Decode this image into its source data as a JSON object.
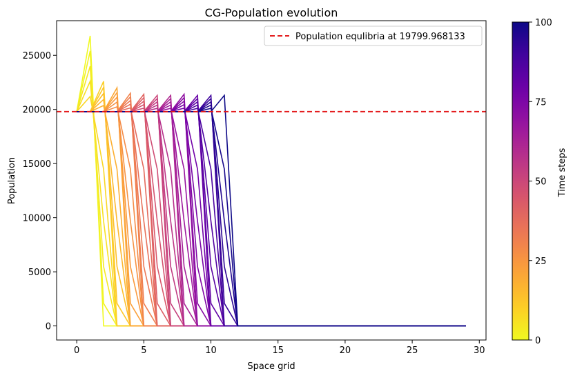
{
  "chart_data": {
    "type": "line",
    "title": "CG-Population evolution",
    "xlabel": "Space grid",
    "ylabel": "Population",
    "xlim": [
      -1.5,
      30.5
    ],
    "ylim": [
      -1300,
      28200
    ],
    "xticks": [
      0,
      5,
      10,
      15,
      20,
      25,
      30
    ],
    "yticks": [
      0,
      5000,
      10000,
      15000,
      20000,
      25000
    ],
    "grid": false,
    "legend": {
      "placement": "top-right",
      "label": "Population equlibria at 19799.968133"
    },
    "equilibrium": {
      "value": 19799.968133,
      "color": "#e31a1c",
      "style": "dashed"
    },
    "colorbar": {
      "label": "Time steps",
      "min": 0,
      "max": 100,
      "ticks": [
        0,
        25,
        50,
        75,
        100
      ],
      "colormap": "plasma",
      "colors": [
        "#0d0887",
        "#46039f",
        "#7201a8",
        "#9c179e",
        "#bd3786",
        "#d8576b",
        "#ed7953",
        "#fb9f3a",
        "#fdca26",
        "#f0f921"
      ]
    },
    "grid_points": 30,
    "series_summary": {
      "description_from_plot": "Traveling front: population near equilibrium (~19800) behind the front, near 0 ahead; front advances ~1 grid cell per ~10 time steps; overshoot peaks at the front tip",
      "peak_values": [
        26800,
        22600,
        22000,
        21500,
        21400,
        21300,
        21300,
        21400,
        21300
      ],
      "front_positions_t0_to_t100": [
        1,
        2,
        3,
        4,
        5,
        6,
        7,
        8,
        9,
        10,
        11
      ]
    }
  }
}
